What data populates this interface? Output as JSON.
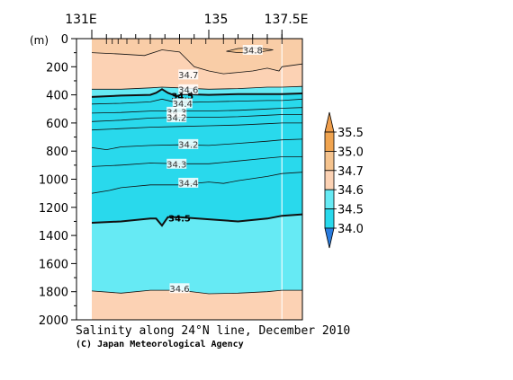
{
  "chart_data": {
    "type": "contour",
    "title": "Salinity along 24°N line, December 2010",
    "credit": "(C) Japan Meteorological Agency",
    "y_unit_label": "(m)",
    "x_ticks": [
      {
        "value": 131,
        "label": "131E"
      },
      {
        "value": 135,
        "label": "135"
      },
      {
        "value": 137.5,
        "label": "137.5E"
      }
    ],
    "xlim": [
      131,
      138.2
    ],
    "ylim": [
      0,
      2000
    ],
    "y_ticks": [
      0,
      200,
      400,
      600,
      800,
      1000,
      1200,
      1400,
      1600,
      1800,
      2000
    ],
    "y_tick_labels": [
      "0",
      "200",
      "400",
      "600",
      "800",
      "1000",
      "1200",
      "1400",
      "1600",
      "1800",
      "2000"
    ],
    "data_extent_x": [
      131,
      138.2
    ],
    "station_ticks_x": [
      131.5,
      131.7,
      131.9,
      132.2,
      132.6,
      133.0,
      133.4,
      134.0,
      134.4,
      134.9,
      135.5,
      135.9,
      136.5,
      137.0,
      137.5
    ],
    "fill_bands": [
      {
        "range": [
          35.0,
          35.5
        ],
        "color": "#f5c38e"
      },
      {
        "range": [
          34.7,
          35.0
        ],
        "color": "#f9cda7"
      },
      {
        "range": [
          34.6,
          34.7
        ],
        "color": "#fcd2b4"
      },
      {
        "range": [
          34.5,
          34.6
        ],
        "color": "#66eaf4"
      },
      {
        "range": [
          34.0,
          34.5
        ],
        "color": "#29d9ec"
      }
    ],
    "contours": [
      {
        "level": "34.8",
        "bold": false,
        "label_x": 136.5,
        "label_y": 80,
        "closed": true,
        "points": [
          [
            135.6,
            90
          ],
          [
            136.0,
            70
          ],
          [
            136.6,
            65
          ],
          [
            137.2,
            80
          ],
          [
            136.6,
            100
          ],
          [
            136.0,
            100
          ]
        ]
      },
      {
        "level": "34.7",
        "bold": false,
        "label_x": 134.3,
        "label_y": 255,
        "closed": false,
        "points": [
          [
            131.0,
            100
          ],
          [
            132.0,
            110
          ],
          [
            132.8,
            120
          ],
          [
            133.4,
            80
          ],
          [
            134.0,
            95
          ],
          [
            134.5,
            200
          ],
          [
            135.0,
            230
          ],
          [
            135.5,
            250
          ],
          [
            136.0,
            240
          ],
          [
            136.5,
            230
          ],
          [
            137.0,
            210
          ],
          [
            137.4,
            230
          ],
          [
            137.5,
            200
          ],
          [
            138.2,
            180
          ]
        ]
      },
      {
        "level": "34.6",
        "bold": false,
        "label_x": 134.3,
        "label_y": 360,
        "closed": false,
        "points": [
          [
            131.0,
            360
          ],
          [
            132.0,
            360
          ],
          [
            133.0,
            350
          ],
          [
            133.4,
            345
          ],
          [
            134.0,
            350
          ],
          [
            135.0,
            360
          ],
          [
            136.0,
            355
          ],
          [
            137.0,
            345
          ],
          [
            137.5,
            345
          ],
          [
            138.2,
            340
          ]
        ]
      },
      {
        "level": "34.5",
        "bold": true,
        "label_x": 134.1,
        "label_y": 405,
        "closed": false,
        "points": [
          [
            131.0,
            415
          ],
          [
            132.0,
            405
          ],
          [
            133.0,
            400
          ],
          [
            133.2,
            385
          ],
          [
            133.4,
            360
          ],
          [
            133.6,
            385
          ],
          [
            133.9,
            410
          ],
          [
            134.1,
            395
          ],
          [
            135.0,
            400
          ],
          [
            136.0,
            395
          ],
          [
            137.0,
            395
          ],
          [
            137.5,
            395
          ],
          [
            138.2,
            390
          ]
        ]
      },
      {
        "level": "34.4",
        "bold": false,
        "label_x": 134.1,
        "label_y": 460,
        "closed": false,
        "points": [
          [
            131.0,
            465
          ],
          [
            132.0,
            460
          ],
          [
            133.0,
            450
          ],
          [
            133.4,
            430
          ],
          [
            133.9,
            455
          ],
          [
            135.0,
            450
          ],
          [
            136.0,
            445
          ],
          [
            137.0,
            440
          ],
          [
            137.5,
            440
          ],
          [
            138.2,
            430
          ]
        ]
      },
      {
        "level": "34.3",
        "bold": false,
        "label_x": 133.9,
        "label_y": 520,
        "closed": false,
        "points": [
          [
            131.0,
            530
          ],
          [
            132.0,
            525
          ],
          [
            133.0,
            515
          ],
          [
            134.0,
            515
          ],
          [
            135.0,
            515
          ],
          [
            136.0,
            510
          ],
          [
            137.0,
            500
          ],
          [
            137.5,
            495
          ],
          [
            138.2,
            490
          ]
        ]
      },
      {
        "level": "34.2",
        "bold": false,
        "label_x": 133.9,
        "label_y": 560,
        "closed": false,
        "points": [
          [
            131.0,
            590
          ],
          [
            132.0,
            580
          ],
          [
            133.0,
            565
          ],
          [
            134.0,
            560
          ],
          [
            135.0,
            560
          ],
          [
            136.0,
            555
          ],
          [
            137.0,
            545
          ],
          [
            137.5,
            540
          ],
          [
            138.2,
            540
          ]
        ]
      },
      {
        "level": "",
        "bold": false,
        "label_x": null,
        "label_y": null,
        "closed": false,
        "points": [
          [
            131.0,
            650
          ],
          [
            132.0,
            640
          ],
          [
            133.0,
            630
          ],
          [
            134.0,
            625
          ],
          [
            135.0,
            620
          ],
          [
            136.0,
            615
          ],
          [
            137.0,
            605
          ],
          [
            137.5,
            600
          ],
          [
            138.2,
            600
          ]
        ]
      },
      {
        "level": "34.2",
        "bold": false,
        "label_x": 134.3,
        "label_y": 750,
        "closed": false,
        "points": [
          [
            131.0,
            775
          ],
          [
            131.5,
            790
          ],
          [
            132.0,
            770
          ],
          [
            133.0,
            760
          ],
          [
            134.0,
            755
          ],
          [
            135.0,
            760
          ],
          [
            136.0,
            745
          ],
          [
            137.0,
            730
          ],
          [
            137.5,
            720
          ],
          [
            138.2,
            715
          ]
        ]
      },
      {
        "level": "34.3",
        "bold": false,
        "label_x": 133.9,
        "label_y": 890,
        "closed": false,
        "points": [
          [
            131.0,
            910
          ],
          [
            132.0,
            900
          ],
          [
            133.0,
            885
          ],
          [
            134.0,
            890
          ],
          [
            135.0,
            890
          ],
          [
            136.0,
            870
          ],
          [
            137.0,
            850
          ],
          [
            137.5,
            840
          ],
          [
            138.2,
            840
          ]
        ]
      },
      {
        "level": "34.4",
        "bold": false,
        "label_x": 134.3,
        "label_y": 1025,
        "closed": false,
        "points": [
          [
            131.0,
            1100
          ],
          [
            131.6,
            1080
          ],
          [
            132.0,
            1060
          ],
          [
            133.0,
            1040
          ],
          [
            134.0,
            1040
          ],
          [
            135.0,
            1020
          ],
          [
            135.5,
            1030
          ],
          [
            136.0,
            1010
          ],
          [
            137.0,
            980
          ],
          [
            137.5,
            960
          ],
          [
            138.2,
            950
          ]
        ]
      },
      {
        "level": "34.5",
        "bold": true,
        "label_x": 134.0,
        "label_y": 1275,
        "closed": false,
        "points": [
          [
            131.0,
            1310
          ],
          [
            132.0,
            1300
          ],
          [
            133.0,
            1280
          ],
          [
            133.2,
            1280
          ],
          [
            133.4,
            1330
          ],
          [
            133.6,
            1270
          ],
          [
            134.0,
            1270
          ],
          [
            135.0,
            1285
          ],
          [
            136.0,
            1300
          ],
          [
            137.0,
            1280
          ],
          [
            137.5,
            1260
          ],
          [
            138.2,
            1250
          ]
        ]
      },
      {
        "level": "34.6",
        "bold": false,
        "label_x": 134.0,
        "label_y": 1775,
        "closed": false,
        "points": [
          [
            131.0,
            1795
          ],
          [
            132.0,
            1810
          ],
          [
            133.0,
            1790
          ],
          [
            134.0,
            1790
          ],
          [
            135.0,
            1815
          ],
          [
            136.0,
            1810
          ],
          [
            137.0,
            1800
          ],
          [
            137.5,
            1790
          ],
          [
            138.2,
            1790
          ]
        ]
      }
    ],
    "colorbar": {
      "labels": [
        "35.5",
        "35.0",
        "34.7",
        "34.6",
        "34.5",
        "34.0"
      ],
      "colors": [
        "#f0a450",
        "#f5c38e",
        "#fcd2b4",
        "#66eaf4",
        "#29d9ec"
      ],
      "top_triangle_color": "#ef9e4c",
      "bottom_triangle_color": "#2a7cdf"
    }
  }
}
